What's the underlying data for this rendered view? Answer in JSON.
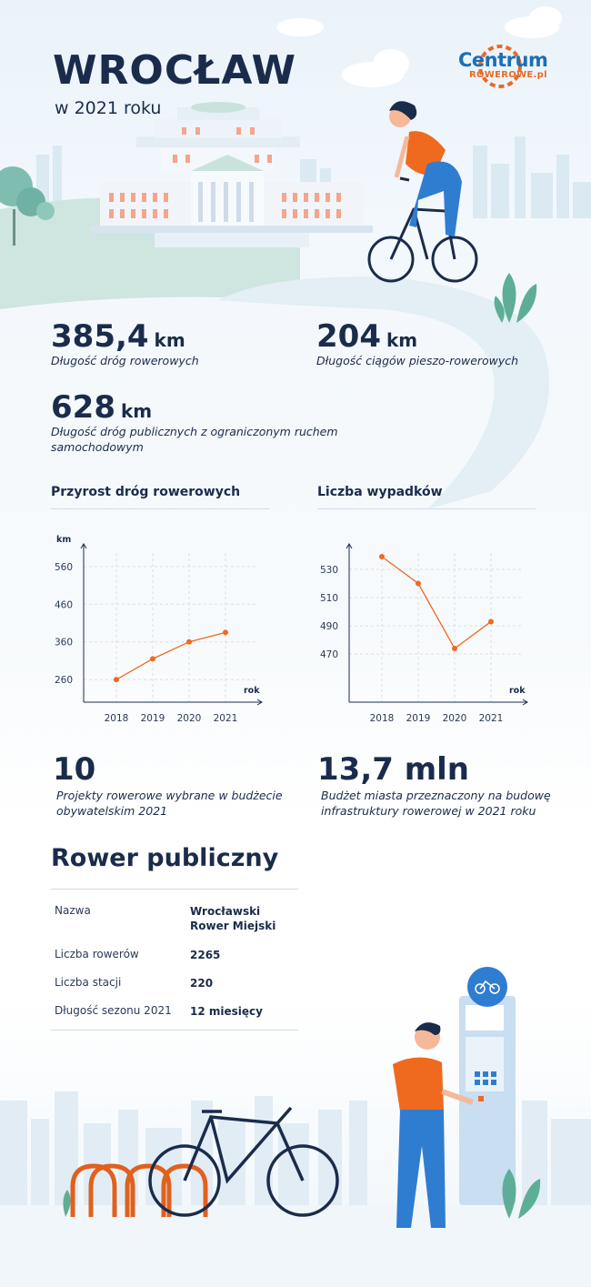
{
  "header": {
    "title": "WROCŁAW",
    "subtitle": "w 2021 roku",
    "logo_top": "Centrum",
    "logo_bottom": "ROWEROWE.pl"
  },
  "stats": {
    "bike_roads": {
      "value": "385,4",
      "unit": "km",
      "desc": "Długość dróg rowerowych"
    },
    "pedestrian_bike": {
      "value": "204",
      "unit": "km",
      "desc": "Długość ciągów pieszo-rowerowych"
    },
    "limited_traffic": {
      "value": "628",
      "unit": "km",
      "desc": "Długość dróg publicznych z ograniczonym ruchem samochodowym"
    },
    "projects": {
      "value": "10",
      "desc": "Projekty rowerowe wybrane w budżecie obywatelskim 2021"
    },
    "budget": {
      "value": "13,7 mln",
      "desc": "Budżet miasta przeznaczony na budowę infrastruktury rowerowej w 2021 roku"
    }
  },
  "chart_data": [
    {
      "type": "line",
      "title": "Przyrost dróg rowerowych",
      "xlabel": "rok",
      "ylabel": "km",
      "categories": [
        "2018",
        "2019",
        "2020",
        "2021"
      ],
      "yticks": [
        "260",
        "360",
        "460",
        "560"
      ],
      "values": [
        260,
        315,
        360,
        385
      ],
      "ylim": [
        200,
        620
      ],
      "grid": true,
      "color": "#ef6a1f"
    },
    {
      "type": "line",
      "title": "Liczba wypadków",
      "xlabel": "rok",
      "ylabel": "",
      "categories": [
        "2018",
        "2019",
        "2020",
        "2021"
      ],
      "yticks": [
        "470",
        "490",
        "510",
        "530"
      ],
      "values": [
        539,
        520,
        474,
        493
      ],
      "ylim": [
        436,
        548
      ],
      "grid": true,
      "color": "#ef6a1f"
    }
  ],
  "public_bike": {
    "title": "Rower publiczny",
    "rows": [
      {
        "key": "Nazwa",
        "value": "Wrocławski Rower Miejski"
      },
      {
        "key": "Liczba rowerów",
        "value": "2265"
      },
      {
        "key": "Liczba stacji",
        "value": "220"
      },
      {
        "key": "Długość sezonu 2021",
        "value": "12 miesięcy"
      }
    ]
  },
  "colors": {
    "navy": "#1b2b4b",
    "orange": "#ef6a1f",
    "blue": "#1c6fb5",
    "green": "#6fb9a8"
  }
}
